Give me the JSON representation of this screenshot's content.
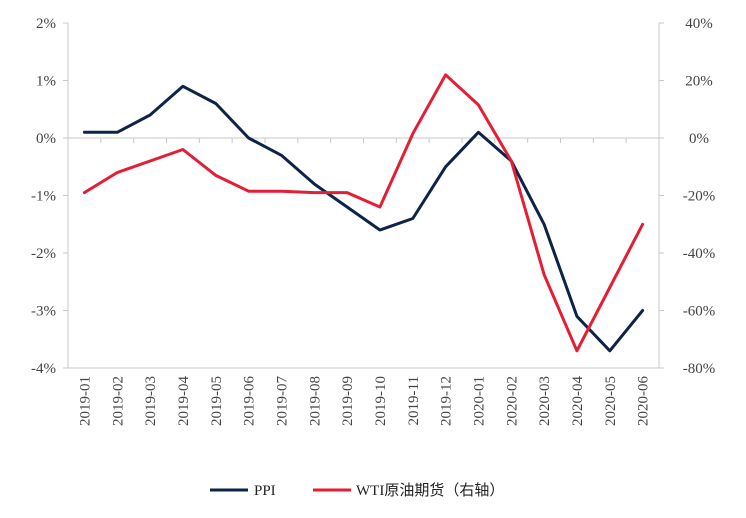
{
  "chart_data": {
    "type": "line",
    "x": [
      "2019-01",
      "2019-02",
      "2019-03",
      "2019-04",
      "2019-05",
      "2019-06",
      "2019-07",
      "2019-08",
      "2019-09",
      "2019-10",
      "2019-11",
      "2019-12",
      "2020-01",
      "2020-02",
      "2020-03",
      "2020-04",
      "2020-05",
      "2020-06"
    ],
    "series": [
      {
        "name": "PPI",
        "axis": "left",
        "color": "#0d2347",
        "values": [
          0.1,
          0.1,
          0.4,
          0.9,
          0.6,
          0.0,
          -0.3,
          -0.8,
          -1.2,
          -1.6,
          -1.4,
          -0.5,
          0.1,
          -0.4,
          -1.5,
          -3.1,
          -3.7,
          -3.0
        ]
      },
      {
        "name": "WTI原油期货（右轴）",
        "axis": "right",
        "color": "#e31e35",
        "values": [
          -19,
          -12,
          -8,
          -4,
          -13,
          -18.5,
          -18.5,
          -19,
          -19,
          -24,
          1.5,
          22,
          11.5,
          -8,
          -47.5,
          -74,
          -52,
          -30
        ]
      }
    ],
    "left_axis": {
      "ylim": [
        -4,
        2
      ],
      "ticks": [
        2,
        1,
        0,
        -1,
        -2,
        -3,
        -4
      ],
      "tick_labels": [
        "2%",
        "1%",
        "0%",
        "-1%",
        "-2%",
        "-3%",
        "-4%"
      ]
    },
    "right_axis": {
      "ylim": [
        -80,
        40
      ],
      "ticks": [
        40,
        20,
        0,
        -20,
        -40,
        -60,
        -80
      ],
      "tick_labels": [
        "40%",
        "20%",
        "0%",
        "-20%",
        "-40%",
        "-60%",
        "-80%"
      ]
    },
    "grid": false,
    "legend_position": "bottom-center",
    "title": "",
    "xlabel": "",
    "ylabel": ""
  },
  "legend": {
    "items": [
      {
        "label": "PPI",
        "color": "#0d2347"
      },
      {
        "label": "WTI原油期货（右轴）",
        "color": "#e31e35"
      }
    ]
  }
}
